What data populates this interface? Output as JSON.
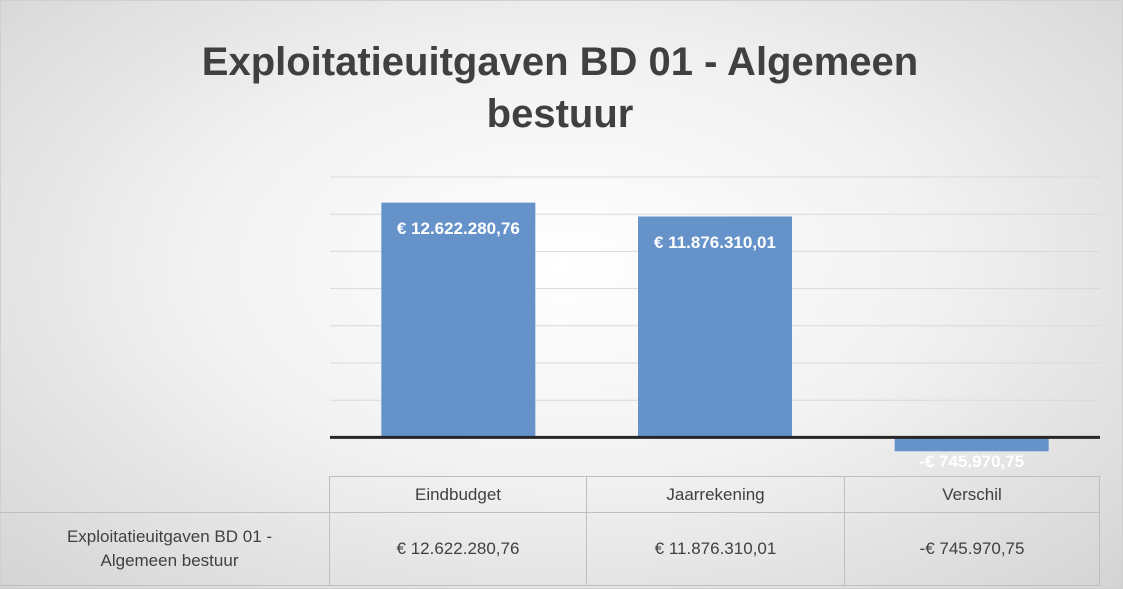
{
  "chart_data": {
    "type": "bar",
    "title": "Exploitatieuitgaven BD 01 - Algemeen bestuur",
    "categories": [
      "Eindbudget",
      "Jaarrekening",
      "Verschil"
    ],
    "series": [
      {
        "name": "Exploitatieuitgaven BD 01 - Algemeen bestuur",
        "color": "#6592c9",
        "values": [
          12622280.76,
          11876310.01,
          -745970.75
        ],
        "value_labels": [
          "€ 12.622.280,76",
          "€ 11.876.310,01",
          "-€ 745.970,75"
        ]
      }
    ],
    "ylim": [
      -1000000,
      14000000
    ],
    "yticks": [
      0,
      2000000,
      4000000,
      6000000,
      8000000,
      10000000,
      12000000,
      14000000
    ],
    "grid": true
  }
}
